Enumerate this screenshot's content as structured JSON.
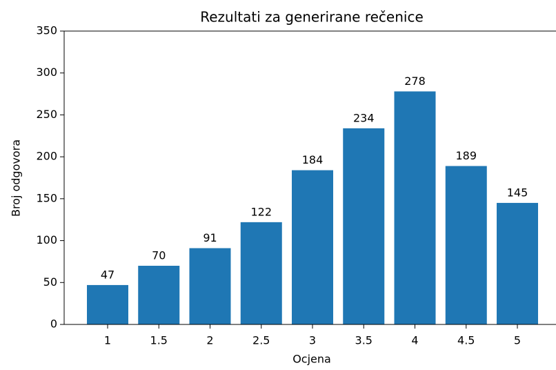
{
  "chart_data": {
    "type": "bar",
    "title": "Rezultati za generirane rečenice",
    "x_label": "Ocjena",
    "y_label": "Broj odgovora",
    "categories": [
      "1",
      "1.5",
      "2",
      "2.5",
      "3",
      "3.5",
      "4",
      "4.5",
      "5"
    ],
    "values": [
      47,
      70,
      91,
      122,
      184,
      234,
      278,
      189,
      145
    ],
    "color": "#1f77b4",
    "ylim": [
      0,
      350
    ],
    "yticks": [
      0,
      50,
      100,
      150,
      200,
      250,
      300,
      350
    ],
    "grid": false
  }
}
